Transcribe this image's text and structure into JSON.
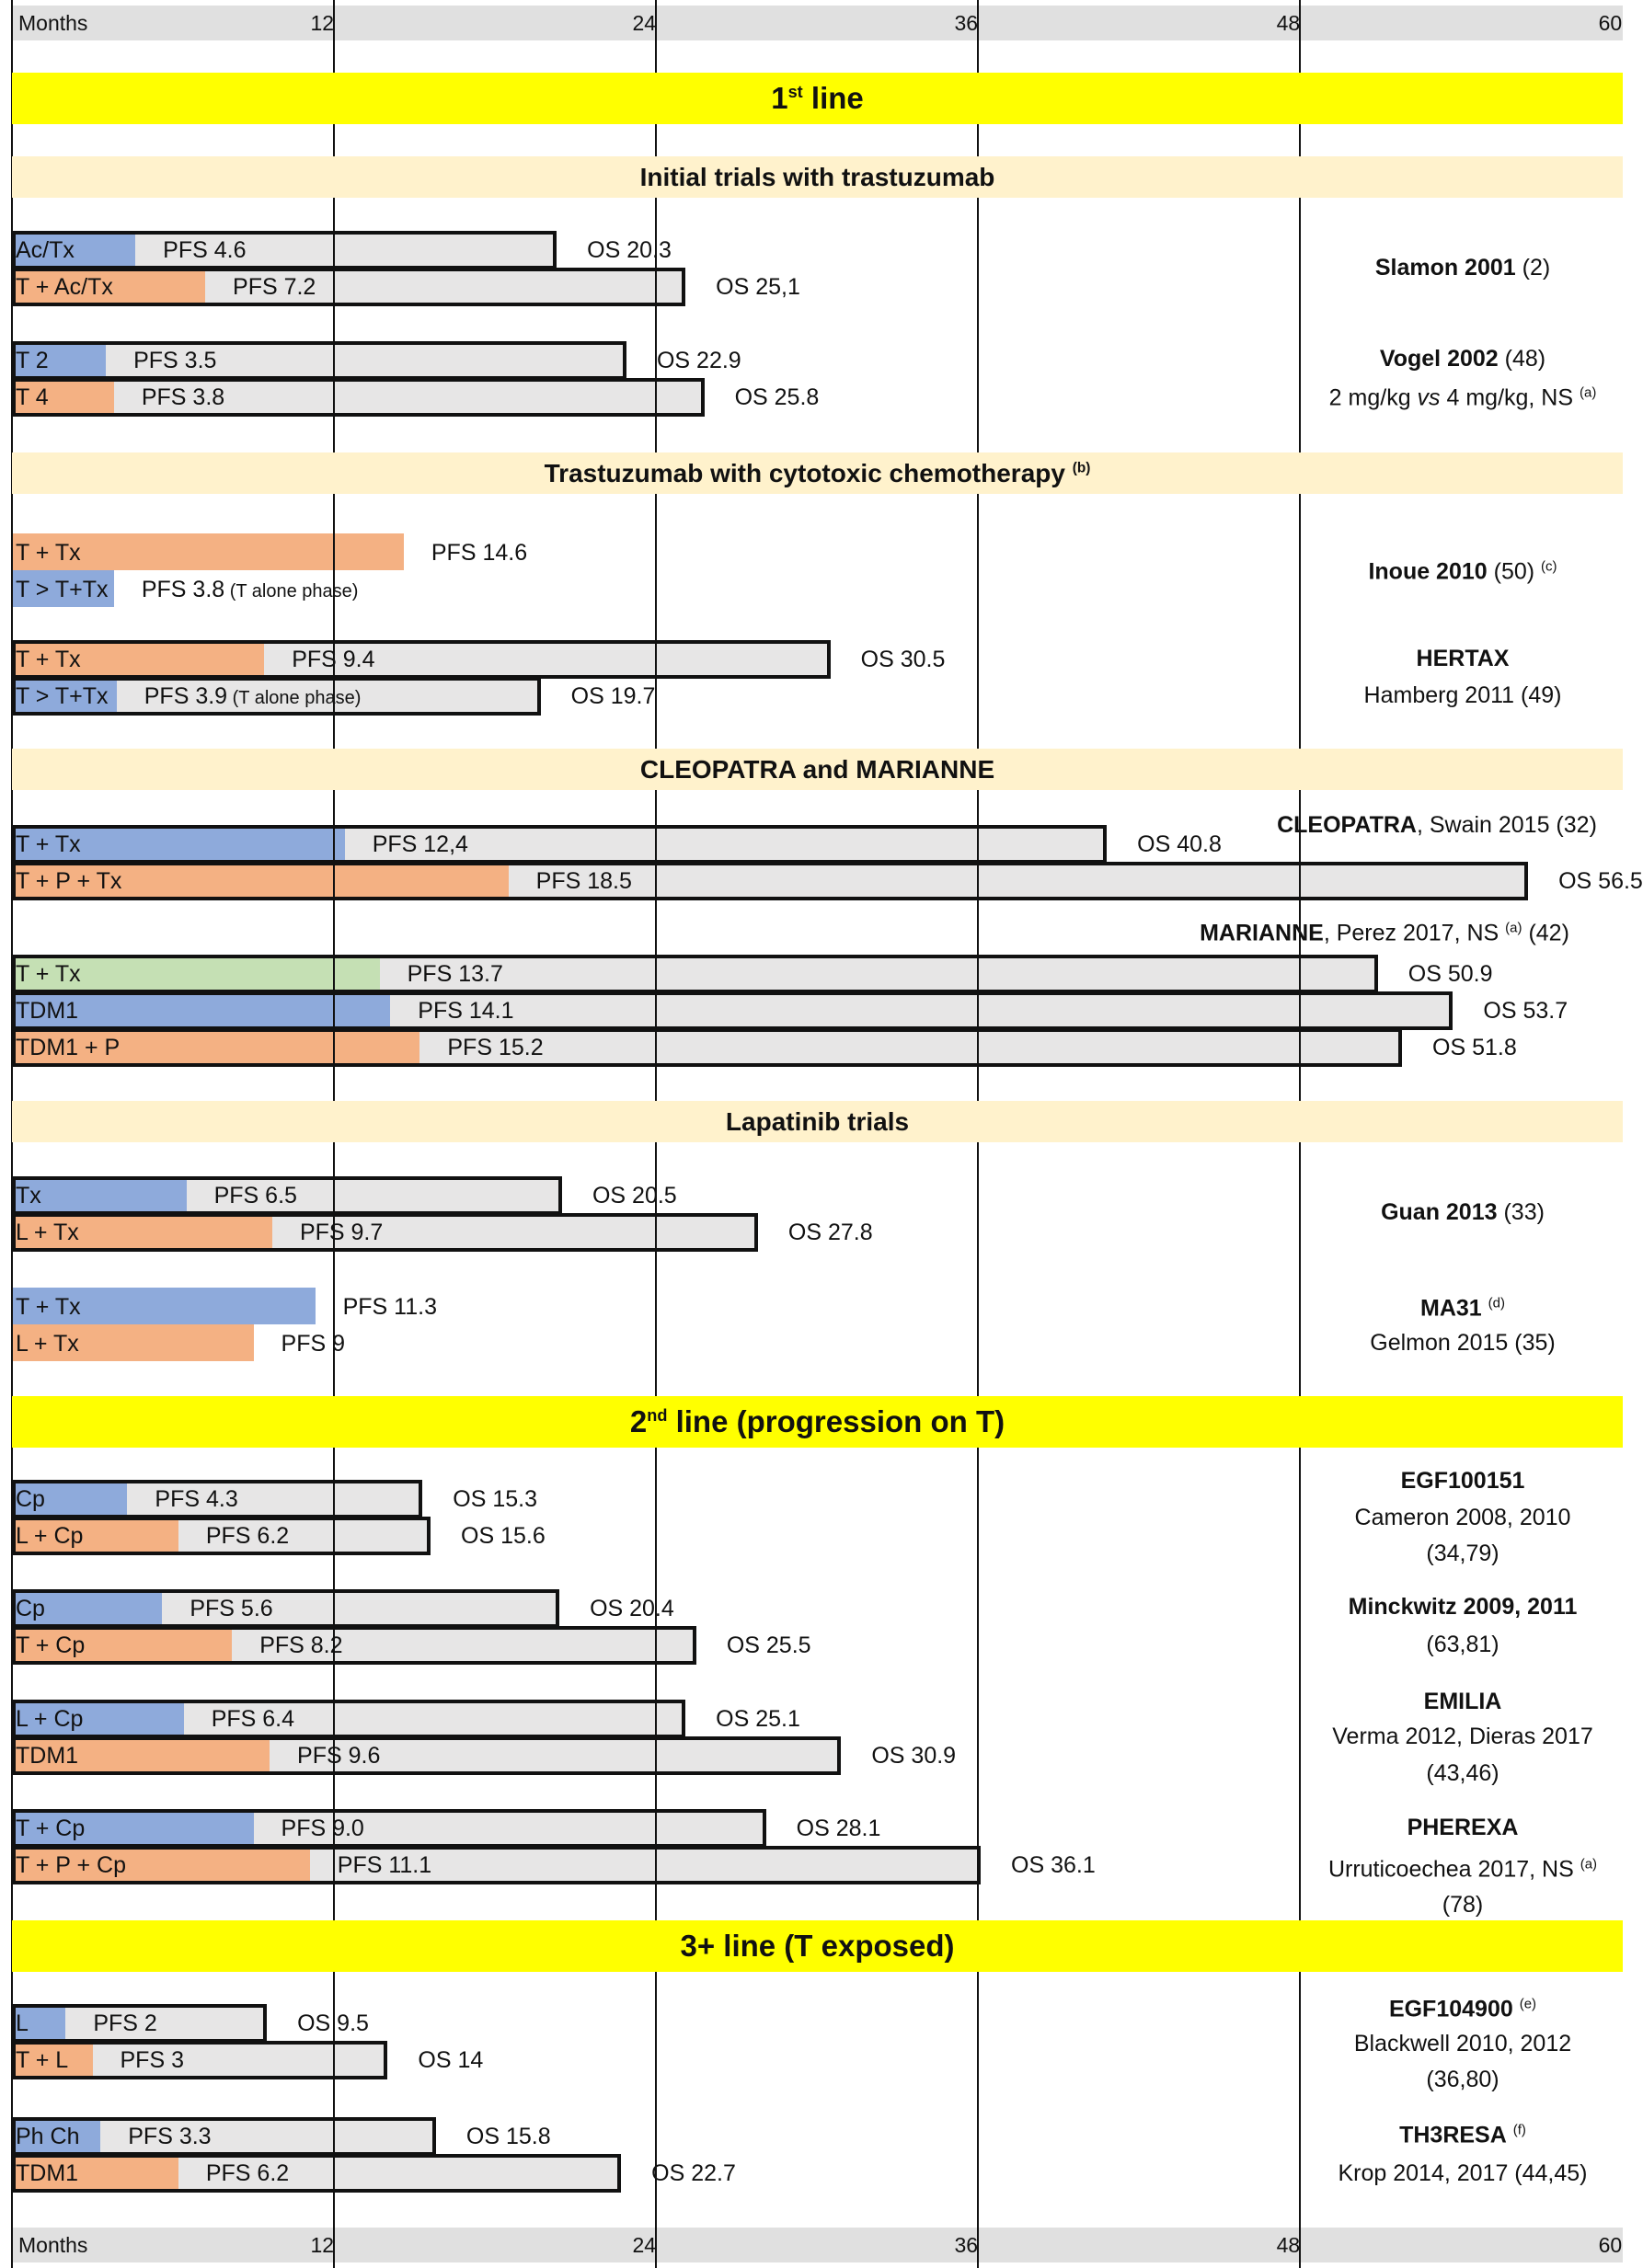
{
  "colors": {
    "blue": "#8eaadb",
    "orange": "#f4b183",
    "green": "#c5e0b4",
    "gray": "#e7e6e6",
    "yellow": "#ffff00",
    "cream": "#fff2cc"
  },
  "chart_data": {
    "type": "bar",
    "axis": {
      "label": "Months",
      "ticks": [
        "12",
        "24",
        "36",
        "48",
        "60"
      ],
      "xlim": [
        0,
        60
      ]
    },
    "blocks": [
      {
        "kind": "line",
        "title": {
          "pre": "1",
          "sup": "st",
          "post": " line"
        }
      },
      {
        "kind": "group",
        "title": {
          "pre": "Initial trials with trastuzumab",
          "sup": "",
          "post": ""
        }
      },
      {
        "kind": "trial",
        "arms": [
          {
            "label": "Ac/Tx",
            "color": "blue",
            "pfs": 4.6,
            "pfs_label": "PFS 4.6",
            "os": 20.3,
            "os_label": "OS 20.3"
          },
          {
            "label": "T + Ac/Tx",
            "color": "orange",
            "pfs": 7.2,
            "pfs_label": "PFS 7.2",
            "os": 25.1,
            "os_label": "OS 25,1"
          }
        ],
        "ref": [
          [
            {
              "t": "Slamon 2001",
              "b": true
            },
            {
              "t": " (2)"
            }
          ]
        ]
      },
      {
        "kind": "trial",
        "arms": [
          {
            "label": "T 2",
            "color": "blue",
            "pfs": 3.5,
            "pfs_label": "PFS 3.5",
            "os": 22.9,
            "os_label": "OS 22.9"
          },
          {
            "label": "T 4",
            "color": "orange",
            "pfs": 3.8,
            "pfs_label": "PFS 3.8",
            "os": 25.8,
            "os_label": "OS 25.8"
          }
        ],
        "ref": [
          [
            {
              "t": "Vogel 2002",
              "b": true
            },
            {
              "t": " (48)"
            }
          ],
          [
            {
              "t": "2 mg/kg "
            },
            {
              "t": "vs",
              "i": true
            },
            {
              "t": " 4 mg/kg, NS "
            },
            {
              "t": "(a)",
              "sup": true
            }
          ]
        ]
      },
      {
        "kind": "group",
        "title": {
          "pre": "Trastuzumab with cytotoxic chemotherapy ",
          "sup": "(b)",
          "post": ""
        }
      },
      {
        "kind": "trial",
        "arms": [
          {
            "label": "T + Tx",
            "color": "orange",
            "pfs": 14.6,
            "pfs_label": "PFS 14.6"
          },
          {
            "label": "T > T+Tx",
            "color": "blue",
            "pfs": 3.8,
            "pfs_label": "PFS 3.8",
            "pfs_note": " (T alone phase)"
          }
        ],
        "ref": [
          [
            {
              "t": "Inoue 2010",
              "b": true
            },
            {
              "t": " (50) "
            },
            {
              "t": "(c)",
              "sup": true
            }
          ]
        ]
      },
      {
        "kind": "trial",
        "arms": [
          {
            "label": "T + Tx",
            "color": "orange",
            "pfs": 9.4,
            "pfs_label": "PFS 9.4",
            "os": 30.5,
            "os_label": "OS 30.5"
          },
          {
            "label": "T > T+Tx",
            "color": "blue",
            "pfs": 3.9,
            "pfs_label": "PFS 3.9",
            "pfs_note": " (T alone phase)",
            "os": 19.7,
            "os_label": "OS 19.7"
          }
        ],
        "ref": [
          [
            {
              "t": "HERTAX",
              "b": true
            }
          ],
          [
            {
              "t": "Hamberg 2011 (49)"
            }
          ]
        ]
      },
      {
        "kind": "group",
        "title": {
          "pre": "CLEOPATRA and MARIANNE",
          "sup": "",
          "post": ""
        }
      },
      {
        "kind": "trial",
        "arms": [
          {
            "label": "T + Tx",
            "color": "blue",
            "pfs": 12.4,
            "pfs_label": "PFS 12,4",
            "os": 40.8,
            "os_label": "OS 40.8"
          },
          {
            "label": "T + P + Tx",
            "color": "orange",
            "pfs": 18.5,
            "pfs_label": "PFS 18.5",
            "os": 56.5,
            "os_label": "OS 56.5"
          }
        ],
        "ref": [
          [
            {
              "t": "CLEOPATRA",
              "b": true
            },
            {
              "t": ", Swain 2015 (32)"
            }
          ]
        ]
      },
      {
        "kind": "trial",
        "arms": [
          {
            "label": "T + Tx",
            "color": "green",
            "pfs": 13.7,
            "pfs_label": "PFS 13.7",
            "os": 50.9,
            "os_label": "OS 50.9"
          },
          {
            "label": "TDM1",
            "color": "blue",
            "pfs": 14.1,
            "pfs_label": "PFS 14.1",
            "os": 53.7,
            "os_label": "OS 53.7"
          },
          {
            "label": "TDM1 + P",
            "color": "orange",
            "pfs": 15.2,
            "pfs_label": "PFS 15.2",
            "os": 51.8,
            "os_label": "OS 51.8"
          }
        ],
        "ref": [
          [
            {
              "t": "MARIANNE",
              "b": true
            },
            {
              "t": ", Perez 2017, NS "
            },
            {
              "t": "(a)",
              "sup": true
            },
            {
              "t": " (42)"
            }
          ]
        ]
      },
      {
        "kind": "group",
        "title": {
          "pre": "Lapatinib trials",
          "sup": "",
          "post": ""
        }
      },
      {
        "kind": "trial",
        "arms": [
          {
            "label": "Tx",
            "color": "blue",
            "pfs": 6.5,
            "pfs_label": "PFS 6.5",
            "os": 20.5,
            "os_label": "OS 20.5"
          },
          {
            "label": "L + Tx",
            "color": "orange",
            "pfs": 9.7,
            "pfs_label": "PFS 9.7",
            "os": 27.8,
            "os_label": "OS 27.8"
          }
        ],
        "ref": [
          [
            {
              "t": "Guan 2013",
              "b": true
            },
            {
              "t": " (33)"
            }
          ]
        ]
      },
      {
        "kind": "trial",
        "arms": [
          {
            "label": "T + Tx",
            "color": "blue",
            "pfs": 11.3,
            "pfs_label": "PFS 11.3"
          },
          {
            "label": "L + Tx",
            "color": "orange",
            "pfs": 9,
            "pfs_label": "PFS 9"
          }
        ],
        "ref": [
          [
            {
              "t": "MA31",
              "b": true
            },
            {
              "t": " "
            },
            {
              "t": "(d)",
              "sup": true
            }
          ],
          [
            {
              "t": "Gelmon 2015 (35)"
            }
          ]
        ]
      },
      {
        "kind": "line",
        "title": {
          "pre": "2",
          "sup": "nd",
          "post": " line (progression on T)"
        }
      },
      {
        "kind": "trial",
        "arms": [
          {
            "label": "Cp",
            "color": "blue",
            "pfs": 4.3,
            "pfs_label": "PFS 4.3",
            "os": 15.3,
            "os_label": "OS 15.3"
          },
          {
            "label": "L + Cp",
            "color": "orange",
            "pfs": 6.2,
            "pfs_label": "PFS 6.2",
            "os": 15.6,
            "os_label": "OS 15.6"
          }
        ],
        "ref": [
          [
            {
              "t": "EGF100151",
              "b": true
            }
          ],
          [
            {
              "t": "Cameron 2008, 2010"
            }
          ],
          [
            {
              "t": "(34,79)"
            }
          ]
        ]
      },
      {
        "kind": "trial",
        "arms": [
          {
            "label": "Cp",
            "color": "blue",
            "pfs": 5.6,
            "pfs_label": "PFS 5.6",
            "os": 20.4,
            "os_label": "OS 20.4"
          },
          {
            "label": "T + Cp",
            "color": "orange",
            "pfs": 8.2,
            "pfs_label": "PFS 8.2",
            "os": 25.5,
            "os_label": "OS 25.5"
          }
        ],
        "ref": [
          [
            {
              "t": "Minckwitz 2009, 2011",
              "b": true
            }
          ],
          [
            {
              "t": "(63,81)"
            }
          ]
        ]
      },
      {
        "kind": "trial",
        "arms": [
          {
            "label": "L + Cp",
            "color": "blue",
            "pfs": 6.4,
            "pfs_label": "PFS 6.4",
            "os": 25.1,
            "os_label": "OS 25.1"
          },
          {
            "label": "TDM1",
            "color": "orange",
            "pfs": 9.6,
            "pfs_label": "PFS 9.6",
            "os": 30.9,
            "os_label": "OS 30.9"
          }
        ],
        "ref": [
          [
            {
              "t": "EMILIA",
              "b": true
            }
          ],
          [
            {
              "t": "Verma 2012, Dieras 2017"
            }
          ],
          [
            {
              "t": "(43,46)"
            }
          ]
        ]
      },
      {
        "kind": "trial",
        "arms": [
          {
            "label": "T + Cp",
            "color": "blue",
            "pfs": 9.0,
            "pfs_label": "PFS 9.0",
            "os": 28.1,
            "os_label": "OS 28.1"
          },
          {
            "label": "T + P + Cp",
            "color": "orange",
            "pfs": 11.1,
            "pfs_label": "PFS 11.1",
            "os": 36.1,
            "os_label": "OS 36.1"
          }
        ],
        "ref": [
          [
            {
              "t": "PHEREXA",
              "b": true
            }
          ],
          [
            {
              "t": "Urruticoechea 2017, NS "
            },
            {
              "t": "(a)",
              "sup": true
            }
          ],
          [
            {
              "t": "(78)"
            }
          ]
        ]
      },
      {
        "kind": "line",
        "title": {
          "pre": "3+ line (T exposed)",
          "sup": "",
          "post": ""
        }
      },
      {
        "kind": "trial",
        "arms": [
          {
            "label": "L",
            "color": "blue",
            "pfs": 2,
            "pfs_label": "PFS 2",
            "os": 9.5,
            "os_label": "OS 9.5"
          },
          {
            "label": "T + L",
            "color": "orange",
            "pfs": 3,
            "pfs_label": "PFS 3",
            "os": 14,
            "os_label": "OS 14"
          }
        ],
        "ref": [
          [
            {
              "t": "EGF104900",
              "b": true
            },
            {
              "t": " "
            },
            {
              "t": "(e)",
              "sup": true
            }
          ],
          [
            {
              "t": "Blackwell 2010, 2012"
            }
          ],
          [
            {
              "t": "(36,80)"
            }
          ]
        ]
      },
      {
        "kind": "trial",
        "arms": [
          {
            "label": "Ph Ch",
            "color": "blue",
            "pfs": 3.3,
            "pfs_label": "PFS 3.3",
            "os": 15.8,
            "os_label": "OS 15.8"
          },
          {
            "label": "TDM1",
            "color": "orange",
            "pfs": 6.2,
            "pfs_label": "PFS 6.2",
            "os": 22.7,
            "os_label": "OS 22.7"
          }
        ],
        "ref": [
          [
            {
              "t": "TH3RESA",
              "b": true
            },
            {
              "t": " "
            },
            {
              "t": "(f)",
              "sup": true
            }
          ],
          [
            {
              "t": "Krop 2014, 2017 (44,45)"
            }
          ]
        ]
      }
    ]
  }
}
